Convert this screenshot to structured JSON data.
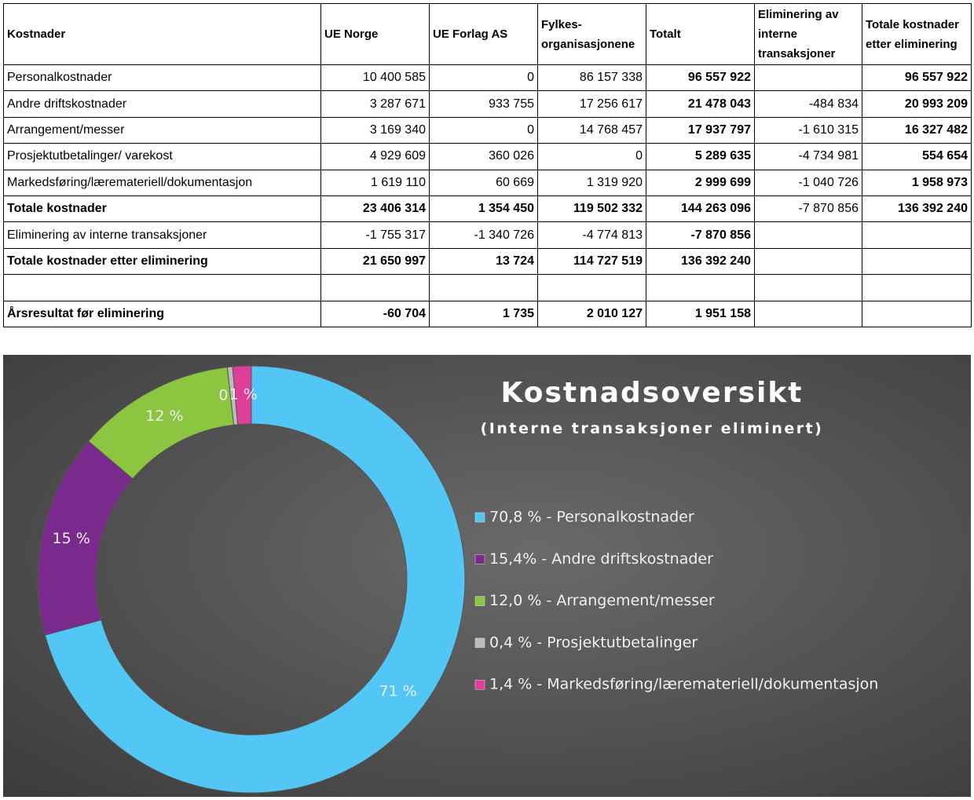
{
  "table": {
    "header": [
      "Kostnader",
      "UE Norge",
      "UE Forlag AS",
      "Fylkes-organisasjonene",
      "Totalt",
      "Eliminering av interne transaksjoner",
      "Totale kostnader etter eliminering"
    ],
    "rows": [
      [
        "Personalkostnader",
        "10 400 585",
        "0",
        "86 157 338",
        "96 557 922",
        null,
        "96 557 922"
      ],
      [
        "Andre driftskostnader",
        "3 287 671",
        "933 755",
        "17 256 617",
        "21 478 043",
        "-484 834",
        "20 993 209"
      ],
      [
        "Arrangement/messer",
        "3 169 340",
        "0",
        "14 768 457",
        "17 937 797",
        "-1 610 315",
        "16 327 482"
      ],
      [
        "Prosjektutbetalinger/ varekost",
        "4 929 609",
        "360 026",
        "0",
        "5 289 635",
        "-4 734 981",
        "554 654"
      ],
      [
        "Markedsføring/læremateriell/dokumentasjon",
        "1 619 110",
        "60 669",
        "1 319 920",
        "2 999 699",
        "-1 040 726",
        "1 958 973"
      ],
      [
        "Totale kostnader",
        "23 406 314",
        "1 354 450",
        "119 502 332",
        "144 263 096",
        "-7 870 856",
        "136 392 240"
      ],
      [
        "Eliminering av interne transaksjoner",
        "-1 755 317",
        "-1 340 726",
        "-4 774 813",
        "-7 870 856",
        null,
        null
      ],
      [
        "Totale kostnader etter eliminering",
        "21 650 997",
        "13 724",
        "114 727 519",
        "136 392 240",
        null,
        null
      ],
      [
        null,
        null,
        null,
        null,
        null,
        null,
        null
      ],
      [
        "Årsresultat før eliminering",
        "-60 704",
        "1 735",
        "2 010 127",
        "1 951 158",
        null,
        null
      ]
    ]
  },
  "chart_data": {
    "type": "pie",
    "title": "Kostnadsoversikt",
    "subtitle": "(Interne transaksjoner eliminert)",
    "categories": [
      "70,8 % - Personalkostnader",
      "15,4% - Andre driftskostnader",
      "12,0 % - Arrangement/messer",
      "0,4 % - Prosjektutbetalinger",
      "1,4 % - Markedsføring/læremateriell/dokumentasjon"
    ],
    "values": [
      70.8,
      15.4,
      12.0,
      0.4,
      1.4
    ],
    "value_labels": [
      "71 %",
      "15 %",
      "12 %",
      "0 %",
      "1 %"
    ],
    "colors": [
      "#52c6f4",
      "#7a2a8c",
      "#8cc540",
      "#bcbcbc",
      "#df3f98"
    ]
  }
}
